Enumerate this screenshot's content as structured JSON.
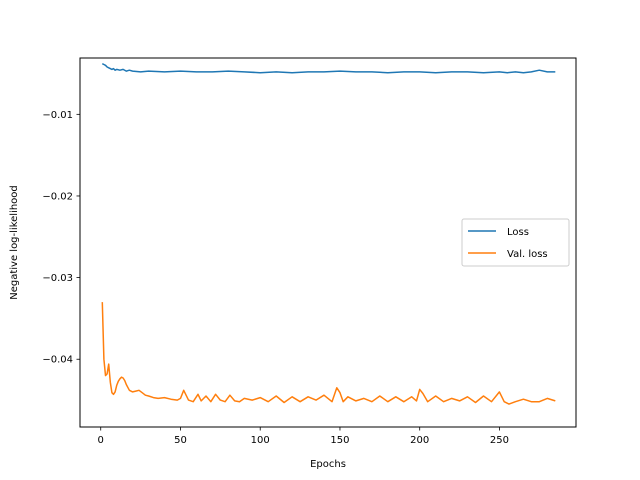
{
  "chart_data": {
    "type": "line",
    "title": "",
    "xlabel": "Epochs",
    "ylabel": "Negative log-likelihood",
    "xlim": [
      -13,
      298
    ],
    "ylim": [
      -0.0483,
      -0.0031
    ],
    "xticks": [
      0,
      50,
      100,
      150,
      200,
      250
    ],
    "yticks": [
      -0.01,
      -0.02,
      -0.03,
      -0.04
    ],
    "xtick_labels": [
      "0",
      "50",
      "100",
      "150",
      "200",
      "250"
    ],
    "ytick_labels": [
      "−0.01",
      "−0.02",
      "−0.03",
      "−0.04"
    ],
    "grid": false,
    "legend_position": "center right",
    "series": [
      {
        "name": "Loss",
        "color": "#1f77b4",
        "x": [
          1,
          2,
          3,
          4,
          5,
          6,
          7,
          8,
          9,
          10,
          12,
          14,
          16,
          18,
          20,
          25,
          30,
          40,
          50,
          60,
          70,
          80,
          90,
          100,
          110,
          120,
          130,
          140,
          150,
          160,
          170,
          180,
          190,
          200,
          210,
          220,
          230,
          240,
          250,
          255,
          260,
          265,
          270,
          275,
          280,
          285
        ],
        "y": [
          -0.0038,
          -0.0039,
          -0.004,
          -0.0042,
          -0.0043,
          -0.0044,
          -0.0045,
          -0.0044,
          -0.0046,
          -0.0045,
          -0.0046,
          -0.0045,
          -0.0047,
          -0.0046,
          -0.0047,
          -0.0048,
          -0.0047,
          -0.0048,
          -0.0047,
          -0.0048,
          -0.0048,
          -0.0047,
          -0.0048,
          -0.0049,
          -0.0048,
          -0.0049,
          -0.0048,
          -0.0048,
          -0.0047,
          -0.0048,
          -0.0048,
          -0.0049,
          -0.0048,
          -0.0048,
          -0.0049,
          -0.0048,
          -0.0048,
          -0.0049,
          -0.0048,
          -0.0049,
          -0.0048,
          -0.0049,
          -0.0048,
          -0.0046,
          -0.0048,
          -0.0048
        ]
      },
      {
        "name": "Val. loss",
        "color": "#ff7f0e",
        "x": [
          1,
          2,
          3,
          4,
          5,
          6,
          7,
          8,
          9,
          10,
          11,
          12,
          13,
          14,
          15,
          16,
          18,
          20,
          22,
          24,
          26,
          28,
          30,
          33,
          36,
          40,
          44,
          48,
          50,
          52,
          55,
          58,
          61,
          63,
          66,
          69,
          72,
          75,
          78,
          81,
          84,
          87,
          90,
          95,
          100,
          105,
          110,
          115,
          120,
          125,
          130,
          135,
          140,
          145,
          148,
          150,
          152,
          155,
          160,
          165,
          170,
          175,
          180,
          185,
          190,
          195,
          198,
          200,
          202,
          205,
          210,
          215,
          220,
          225,
          230,
          235,
          240,
          245,
          250,
          253,
          256,
          260,
          265,
          270,
          275,
          280,
          285
        ],
        "y": [
          -0.033,
          -0.04,
          -0.042,
          -0.0418,
          -0.0406,
          -0.0428,
          -0.0441,
          -0.0443,
          -0.044,
          -0.0432,
          -0.0427,
          -0.0424,
          -0.0422,
          -0.0423,
          -0.0426,
          -0.0431,
          -0.0438,
          -0.044,
          -0.0439,
          -0.0438,
          -0.0441,
          -0.0444,
          -0.0445,
          -0.0447,
          -0.0448,
          -0.0447,
          -0.0449,
          -0.045,
          -0.0448,
          -0.0438,
          -0.045,
          -0.0452,
          -0.0443,
          -0.0451,
          -0.0445,
          -0.0452,
          -0.0443,
          -0.045,
          -0.0452,
          -0.0444,
          -0.0451,
          -0.0452,
          -0.0448,
          -0.045,
          -0.0447,
          -0.0452,
          -0.0445,
          -0.0453,
          -0.0446,
          -0.0452,
          -0.0446,
          -0.045,
          -0.0444,
          -0.0452,
          -0.0435,
          -0.0441,
          -0.0452,
          -0.0446,
          -0.0451,
          -0.0448,
          -0.0452,
          -0.0445,
          -0.0452,
          -0.0446,
          -0.0452,
          -0.0446,
          -0.0451,
          -0.0437,
          -0.0442,
          -0.0452,
          -0.0445,
          -0.0452,
          -0.0448,
          -0.0451,
          -0.0446,
          -0.0453,
          -0.0445,
          -0.0452,
          -0.044,
          -0.0452,
          -0.0455,
          -0.0452,
          -0.0449,
          -0.0452,
          -0.0452,
          -0.0448,
          -0.0451
        ]
      }
    ]
  }
}
